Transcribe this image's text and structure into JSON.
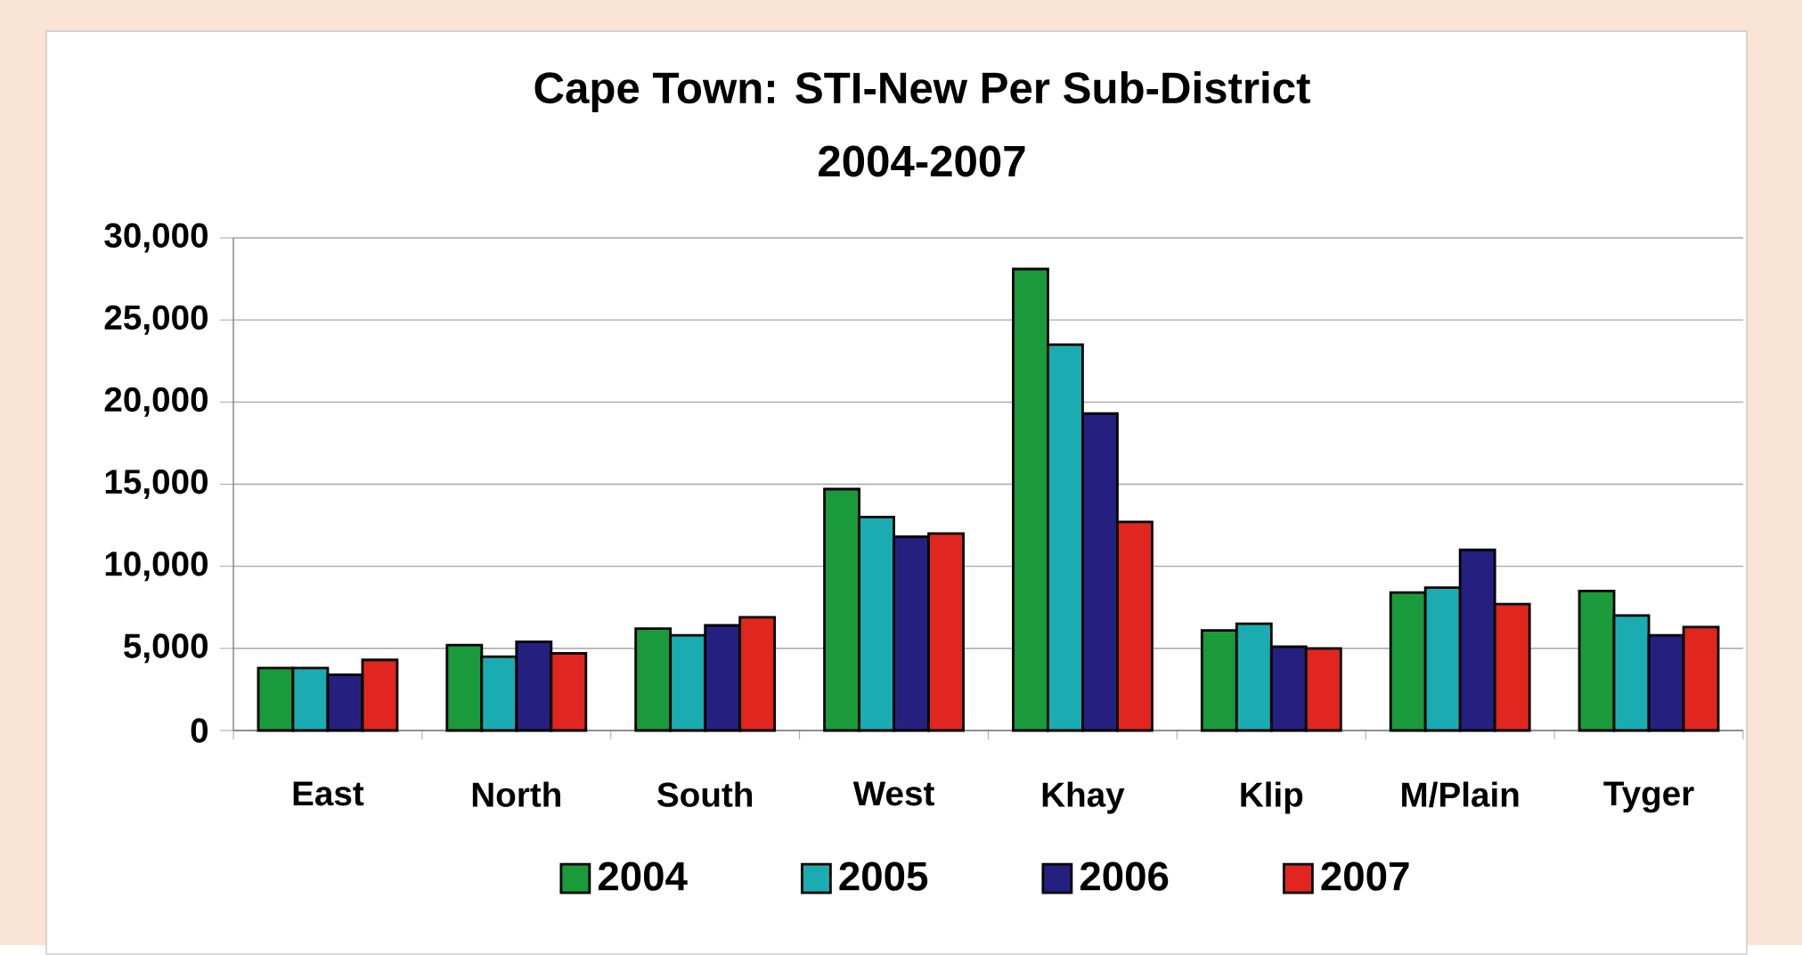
{
  "chart_data": {
    "type": "bar",
    "title": "Cape Town: STI-New Per Sub-District",
    "subtitle": "2004-2007",
    "categories": [
      "East",
      "North",
      "South",
      "West",
      "Khay",
      "Klip",
      "M/Plain",
      "Tyger"
    ],
    "series": [
      {
        "name": "2004",
        "color": "#1a9a3a",
        "values": [
          3800,
          5200,
          6200,
          14700,
          28100,
          6100,
          8400,
          8500
        ]
      },
      {
        "name": "2005",
        "color": "#1aacb0",
        "values": [
          3800,
          4500,
          5800,
          13000,
          23500,
          6500,
          8700,
          7000
        ]
      },
      {
        "name": "2006",
        "color": "#252080",
        "values": [
          3400,
          5400,
          6400,
          11800,
          19300,
          5100,
          11000,
          5800
        ]
      },
      {
        "name": "2007",
        "color": "#e0261e",
        "values": [
          4300,
          4700,
          6900,
          12000,
          12700,
          5000,
          7700,
          6300
        ]
      }
    ],
    "ylim": [
      0,
      30000
    ],
    "yticks": [
      0,
      {
        "value": 5000,
        "label": "5,000"
      },
      {
        "value": 10000,
        "label": "10,000"
      },
      {
        "value": 15000,
        "label": "15,000"
      },
      {
        "value": 20000,
        "label": "20,000"
      },
      {
        "value": 25000,
        "label": "25,000"
      },
      {
        "value": 30000,
        "label": "30,000"
      }
    ],
    "grid": "y",
    "legend": "bottom"
  }
}
